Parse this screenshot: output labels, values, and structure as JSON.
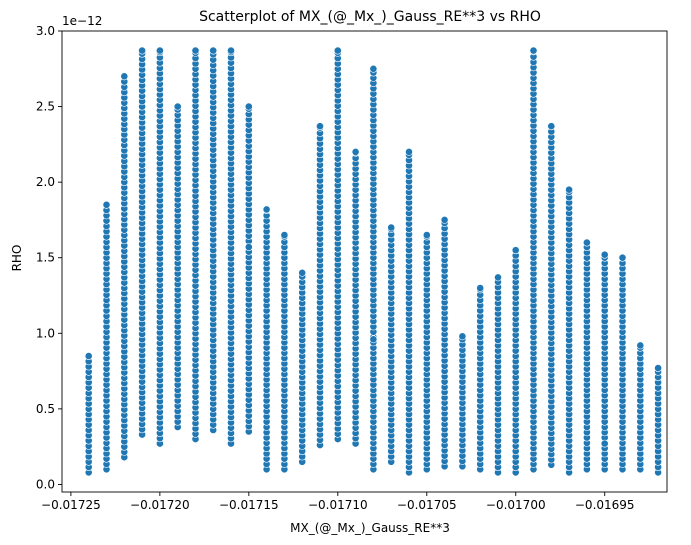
{
  "chart_data": {
    "type": "scatter",
    "title": "Scatterplot of MX_(@_Mx_)_Gauss_RE**3 vs RHO",
    "xlabel": "MX_(@_Mx_)_Gauss_RE**3",
    "ylabel": "RHO",
    "y_offset_label": "1e−12",
    "xlim": [
      -0.017255,
      -0.016915
    ],
    "ylim": [
      -0.05,
      3.0
    ],
    "y_scale_exponent": -12,
    "x_ticks": [
      -0.01725,
      -0.0172,
      -0.01715,
      -0.0171,
      -0.01705,
      -0.017,
      -0.01695
    ],
    "x_tick_labels": [
      "−0.01725",
      "−0.01720",
      "−0.01715",
      "−0.01710",
      "−0.01705",
      "−0.01700",
      "−0.01695"
    ],
    "y_ticks": [
      0.0,
      0.5,
      1.0,
      1.5,
      2.0,
      2.5,
      3.0
    ],
    "y_tick_labels": [
      "0.0",
      "0.5",
      "1.0",
      "1.5",
      "2.0",
      "2.5",
      "3.0"
    ],
    "grid": false,
    "marker_color": "#1f77b4",
    "series": [
      {
        "columns": [
          {
            "x": -0.01724,
            "ymin": 0.08,
            "ymax": 0.85
          },
          {
            "x": -0.01723,
            "ymin": 0.1,
            "ymax": 1.85
          },
          {
            "x": -0.01722,
            "ymin": 0.18,
            "ymax": 2.7
          },
          {
            "x": -0.01721,
            "ymin": 0.33,
            "ymax": 2.87
          },
          {
            "x": -0.0172,
            "ymin": 0.27,
            "ymax": 2.87
          },
          {
            "x": -0.01719,
            "ymin": 0.38,
            "ymax": 2.5
          },
          {
            "x": -0.01718,
            "ymin": 0.3,
            "ymax": 2.87
          },
          {
            "x": -0.01717,
            "ymin": 0.36,
            "ymax": 2.87
          },
          {
            "x": -0.01716,
            "ymin": 0.27,
            "ymax": 2.87
          },
          {
            "x": -0.01715,
            "ymin": 0.35,
            "ymax": 2.5
          },
          {
            "x": -0.01714,
            "ymin": 0.1,
            "ymax": 1.82
          },
          {
            "x": -0.01713,
            "ymin": 0.1,
            "ymax": 1.65
          },
          {
            "x": -0.01712,
            "ymin": 0.15,
            "ymax": 1.4
          },
          {
            "x": -0.01711,
            "ymin": 0.26,
            "ymax": 2.37
          },
          {
            "x": -0.0171,
            "ymin": 0.3,
            "ymax": 2.87
          },
          {
            "x": -0.01709,
            "ymin": 0.27,
            "ymax": 2.2
          },
          {
            "x": -0.01708,
            "ymin": 0.1,
            "ymax": 2.75
          },
          {
            "x": -0.01707,
            "ymin": 0.15,
            "ymax": 1.7
          },
          {
            "x": -0.01706,
            "ymin": 0.08,
            "ymax": 2.2
          },
          {
            "x": -0.01705,
            "ymin": 0.1,
            "ymax": 1.65
          },
          {
            "x": -0.01704,
            "ymin": 0.12,
            "ymax": 1.75
          },
          {
            "x": -0.01703,
            "ymin": 0.12,
            "ymax": 0.98
          },
          {
            "x": -0.01702,
            "ymin": 0.1,
            "ymax": 1.3
          },
          {
            "x": -0.01701,
            "ymin": 0.08,
            "ymax": 1.37
          },
          {
            "x": -0.017,
            "ymin": 0.08,
            "ymax": 1.55
          },
          {
            "x": -0.01699,
            "ymin": 0.1,
            "ymax": 2.87
          },
          {
            "x": -0.01698,
            "ymin": 0.13,
            "ymax": 2.37
          },
          {
            "x": -0.01697,
            "ymin": 0.08,
            "ymax": 1.95
          },
          {
            "x": -0.01696,
            "ymin": 0.1,
            "ymax": 1.6
          },
          {
            "x": -0.01695,
            "ymin": 0.1,
            "ymax": 1.52
          },
          {
            "x": -0.01694,
            "ymin": 0.1,
            "ymax": 1.5
          },
          {
            "x": -0.01693,
            "ymin": 0.1,
            "ymax": 0.92
          },
          {
            "x": -0.01692,
            "ymin": 0.08,
            "ymax": 0.77
          }
        ],
        "extra_points": [
          {
            "x": -0.01715,
            "y": 1.57
          },
          {
            "x": -0.01708,
            "y": 0.96
          },
          {
            "x": -0.01695,
            "y": 0.27
          }
        ]
      }
    ]
  }
}
